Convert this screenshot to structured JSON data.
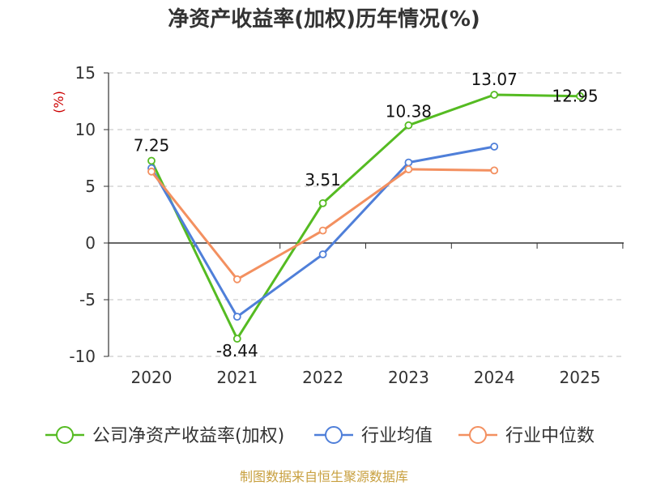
{
  "title": "净资产收益率(加权)历年情况(%)",
  "unit_label": "(%)",
  "source": "制图数据来自恒生聚源数据库",
  "colors": {
    "company": "#55bb22",
    "industry_avg": "#4f7fd9",
    "industry_median": "#f39060",
    "grid": "#cccccc",
    "axis": "#333333",
    "unit": "#cc0000",
    "source": "#c8a040"
  },
  "chart_data": {
    "type": "line",
    "title": "净资产收益率(加权)历年情况(%)",
    "ylabel": "(%)",
    "categories": [
      "2020",
      "2021",
      "2022",
      "2023",
      "2024",
      "2025"
    ],
    "ylim": [
      -10,
      15
    ],
    "yticks": [
      -10,
      -5,
      0,
      5,
      10,
      15
    ],
    "grid": true,
    "legend_position": "bottom",
    "series": [
      {
        "name": "公司净资产收益率(加权)",
        "key": "company",
        "values": [
          7.25,
          -8.44,
          3.51,
          10.38,
          13.07,
          12.95
        ],
        "data_labels": [
          "7.25",
          "-8.44",
          "3.51",
          "10.38",
          "13.07",
          "12.95"
        ]
      },
      {
        "name": "行业均值",
        "key": "industry_avg",
        "values": [
          6.6,
          -6.5,
          -1.0,
          7.1,
          8.5,
          null
        ]
      },
      {
        "name": "行业中位数",
        "key": "industry_median",
        "values": [
          6.3,
          -3.2,
          1.1,
          6.5,
          6.4,
          null
        ]
      }
    ]
  }
}
